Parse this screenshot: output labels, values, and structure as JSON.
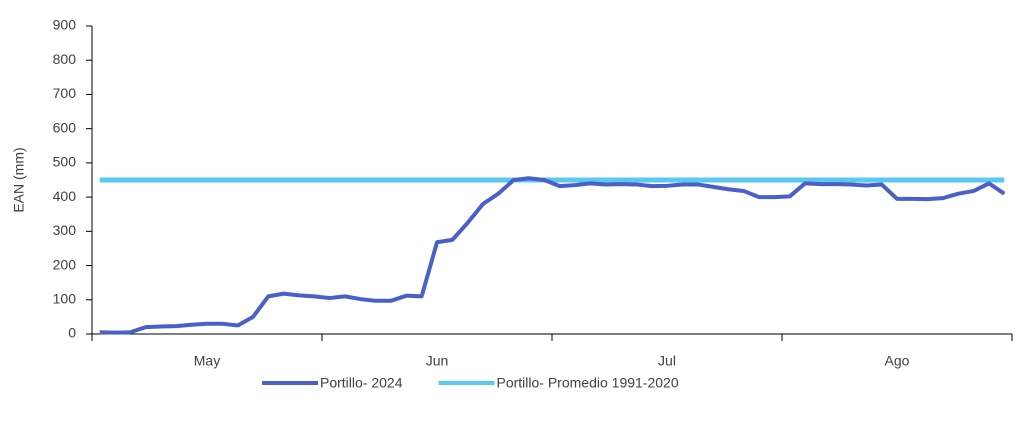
{
  "chart_data": {
    "type": "line",
    "y_label": "EAN (mm)",
    "categories": [
      null,
      null,
      null,
      null,
      null,
      null,
      null,
      "May",
      null,
      null,
      null,
      null,
      null,
      null,
      null,
      null,
      null,
      null,
      null,
      null,
      null,
      null,
      "Jun",
      null,
      null,
      null,
      null,
      null,
      null,
      null,
      null,
      null,
      null,
      null,
      null,
      null,
      null,
      "Jul",
      null,
      null,
      null,
      null,
      null,
      null,
      null,
      null,
      null,
      null,
      null,
      null,
      null,
      null,
      "Ago",
      null,
      null,
      null,
      null,
      null,
      null,
      null
    ],
    "series": [
      {
        "name": "Portillo- 2024",
        "color": "#4a5fc9",
        "values": [
          5,
          4,
          5,
          20,
          22,
          23,
          27,
          30,
          30,
          25,
          50,
          110,
          118,
          113,
          110,
          105,
          110,
          102,
          97,
          97,
          112,
          110,
          268,
          275,
          325,
          380,
          410,
          450,
          455,
          450,
          432,
          435,
          440,
          437,
          438,
          437,
          432,
          433,
          437,
          437,
          430,
          423,
          418,
          400,
          400,
          402,
          440,
          438,
          438,
          437,
          434,
          437,
          395,
          395,
          394,
          397,
          410,
          418,
          440,
          410
        ]
      },
      {
        "name": "Portillo- Promedio 1991-2020",
        "color": "#5bc8f0",
        "values": [
          450,
          450,
          450,
          450,
          450,
          450,
          450,
          450,
          450,
          450,
          450,
          450,
          450,
          450,
          450,
          450,
          450,
          450,
          450,
          450,
          450,
          450,
          450,
          450,
          450,
          450,
          450,
          450,
          450,
          450,
          450,
          450,
          450,
          450,
          450,
          450,
          450,
          450,
          450,
          450,
          450,
          450,
          450,
          450,
          450,
          450,
          450,
          450,
          450,
          450,
          450,
          450,
          450,
          450,
          450,
          450,
          450,
          450,
          450,
          450
        ]
      }
    ],
    "ylim": [
      0,
      900
    ],
    "yticks": [
      0,
      100,
      200,
      300,
      400,
      500,
      600,
      700,
      800,
      900
    ],
    "grid": false
  }
}
